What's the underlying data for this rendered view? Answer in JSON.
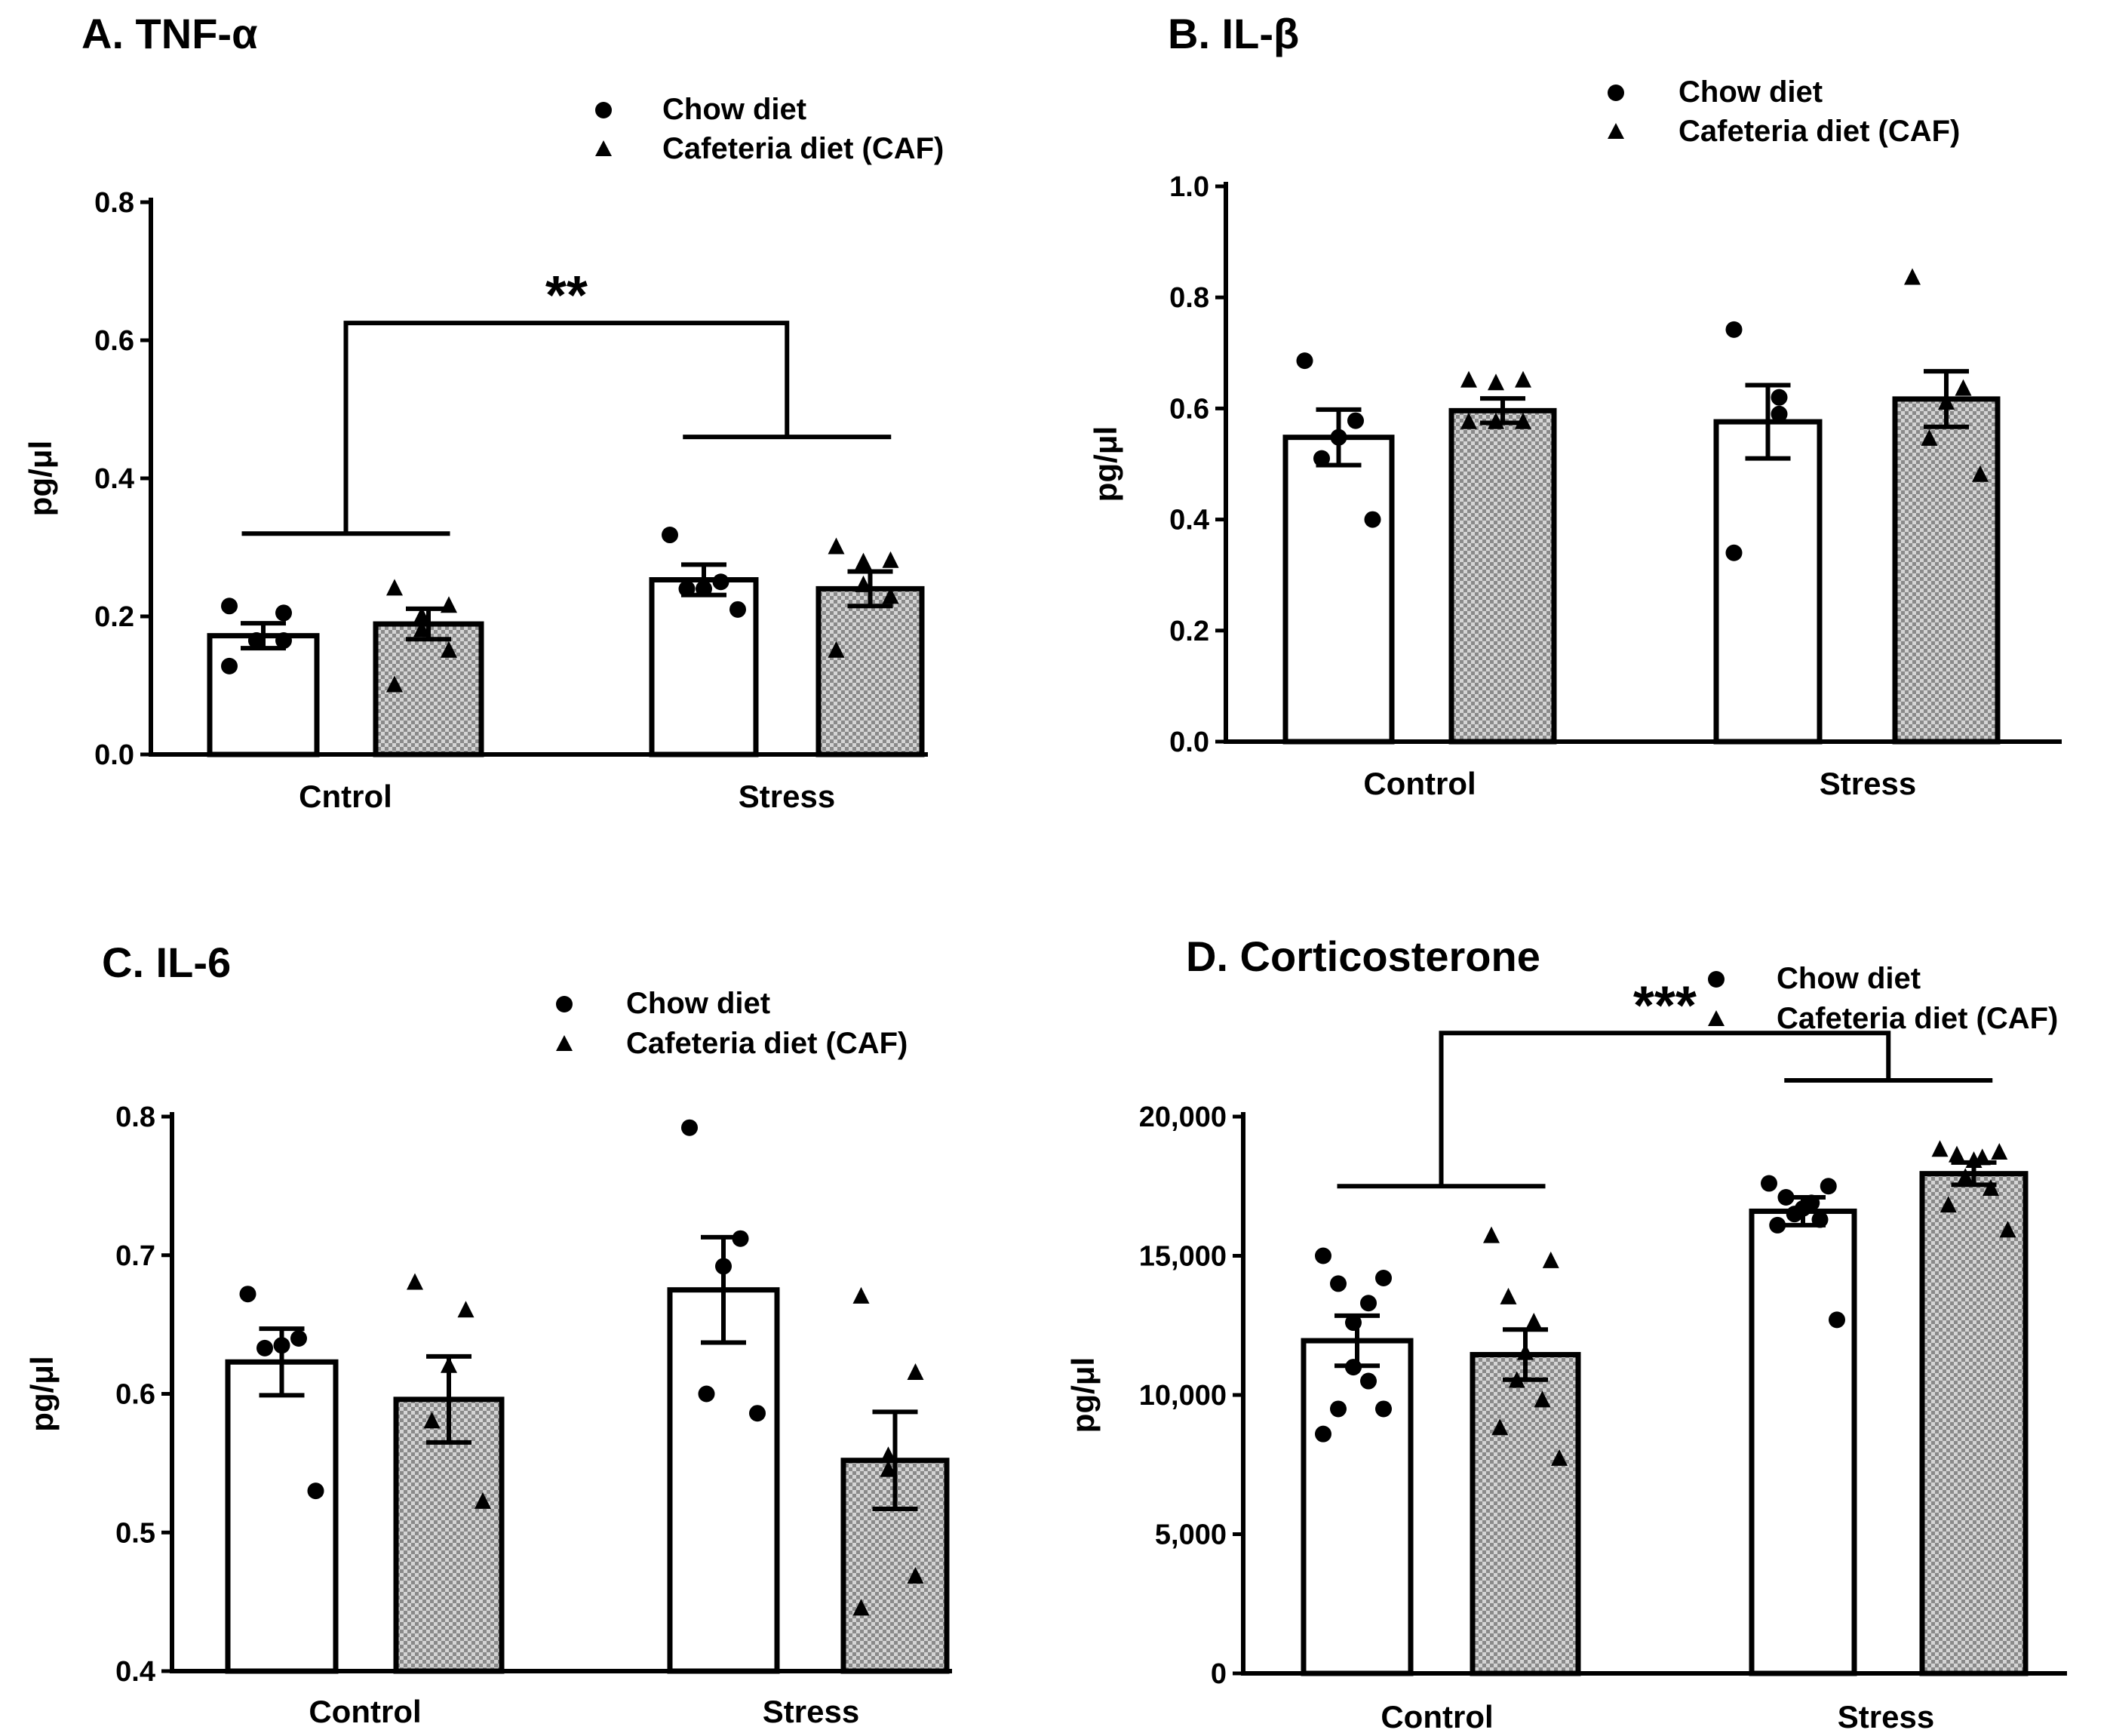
{
  "legend": {
    "chow": "Chow diet",
    "caf": "Cafeteria diet (CAF)"
  },
  "colors": {
    "ink": "#000000",
    "bar_chow": "#ffffff",
    "hatch_light": "#d4d4d4",
    "hatch_dark": "#8a8a8a"
  },
  "chart_data": [
    {
      "panel": "A",
      "type": "bar",
      "title": "A. TNF-α",
      "ylabel": "pg/μl",
      "categories": [
        "Cntrol",
        "Stress"
      ],
      "ylim": [
        0,
        0.8
      ],
      "yticks": [
        0,
        0.2,
        0.4,
        0.6,
        0.8
      ],
      "yticklabels": [
        "0.0",
        "0.2",
        "0.4",
        "0.6",
        "0.8"
      ],
      "series": [
        {
          "name": "Chow diet",
          "values": [
            0.172,
            0.253
          ],
          "sem": [
            0.018,
            0.022
          ],
          "points": [
            [
              0.215,
              0.205,
              0.165,
              0.165,
              0.165,
              0.128
            ],
            [
              0.318,
              0.25,
              0.24,
              0.24,
              0.21
            ]
          ]
        },
        {
          "name": "Cafeteria diet (CAF)",
          "values": [
            0.189,
            0.24
          ],
          "sem": [
            0.022,
            0.025
          ],
          "points": [
            [
              0.24,
              0.215,
              0.2,
              0.18,
              0.15,
              0.1
            ],
            [
              0.3,
              0.28,
              0.278,
              0.245,
              0.228,
              0.15
            ]
          ]
        }
      ],
      "significance": {
        "label": "**",
        "bracket_y": 0.625,
        "left_y": 0.32,
        "right_y": 0.46
      }
    },
    {
      "panel": "B",
      "type": "bar",
      "title": "B. IL-β",
      "ylabel": "pg/μl",
      "categories": [
        "Control",
        "Stress"
      ],
      "ylim": [
        0,
        1.0
      ],
      "yticks": [
        0,
        0.2,
        0.4,
        0.6,
        0.8,
        1.0
      ],
      "yticklabels": [
        "0.0",
        "0.2",
        "0.4",
        "0.6",
        "0.8",
        "1.0"
      ],
      "series": [
        {
          "name": "Chow diet",
          "values": [
            0.548,
            0.576
          ],
          "sem": [
            0.05,
            0.066
          ],
          "points": [
            [
              0.686,
              0.578,
              0.548,
              0.51,
              0.4
            ],
            [
              0.742,
              0.62,
              0.59,
              0.34
            ]
          ]
        },
        {
          "name": "Cafeteria diet (CAF)",
          "values": [
            0.596,
            0.617
          ],
          "sem": [
            0.022,
            0.05
          ],
          "points": [
            [
              0.65,
              0.65,
              0.645,
              0.575,
              0.575,
              0.575
            ],
            [
              0.835,
              0.635,
              0.61,
              0.545,
              0.48
            ]
          ]
        }
      ]
    },
    {
      "panel": "C",
      "type": "bar",
      "title": "C. IL-6",
      "ylabel": "pg/μl",
      "categories": [
        "Control",
        "Stress"
      ],
      "ylim": [
        0.4,
        0.8
      ],
      "yticks": [
        0.4,
        0.5,
        0.6,
        0.7,
        0.8
      ],
      "yticklabels": [
        "0.4",
        "0.5",
        "0.6",
        "0.7",
        "0.8"
      ],
      "series": [
        {
          "name": "Chow diet",
          "values": [
            0.623,
            0.675
          ],
          "sem": [
            0.024,
            0.038
          ],
          "points": [
            [
              0.672,
              0.64,
              0.635,
              0.633,
              0.53
            ],
            [
              0.792,
              0.712,
              0.692,
              0.6,
              0.586
            ]
          ]
        },
        {
          "name": "Cafeteria diet (CAF)",
          "values": [
            0.596,
            0.552
          ],
          "sem": [
            0.031,
            0.035
          ],
          "points": [
            [
              0.68,
              0.66,
              0.62,
              0.58,
              0.522
            ],
            [
              0.67,
              0.615,
              0.555,
              0.545,
              0.468,
              0.445
            ]
          ]
        }
      ]
    },
    {
      "panel": "D",
      "type": "bar",
      "title": "D. Corticosterone",
      "ylabel": "pg/μl",
      "categories": [
        "Control",
        "Stress"
      ],
      "ylim": [
        0,
        20000
      ],
      "yticks": [
        0,
        5000,
        10000,
        15000,
        20000
      ],
      "yticklabels": [
        "0",
        "5,000",
        "10,000",
        "15,000",
        "20,000"
      ],
      "series": [
        {
          "name": "Chow diet",
          "values": [
            11950,
            16600
          ],
          "sem": [
            900,
            500
          ],
          "points": [
            [
              15000,
              14200,
              14000,
              13300,
              12600,
              11000,
              10500,
              9500,
              9500,
              8600
            ],
            [
              17600,
              17500,
              17100,
              16900,
              16700,
              16500,
              16300,
              16100,
              12700
            ]
          ]
        },
        {
          "name": "Cafeteria diet (CAF)",
          "values": [
            11450,
            17950
          ],
          "sem": [
            900,
            400
          ],
          "points": [
            [
              15700,
              14800,
              13500,
              12600,
              11500,
              10500,
              9800,
              8800,
              7700
            ],
            [
              18800,
              18700,
              18600,
              18500,
              18400,
              17800,
              17400,
              16800,
              15900
            ]
          ]
        }
      ],
      "significance": {
        "label": "***",
        "bracket_y": 23000,
        "left_y": 17500,
        "right_y": 21300
      }
    }
  ]
}
